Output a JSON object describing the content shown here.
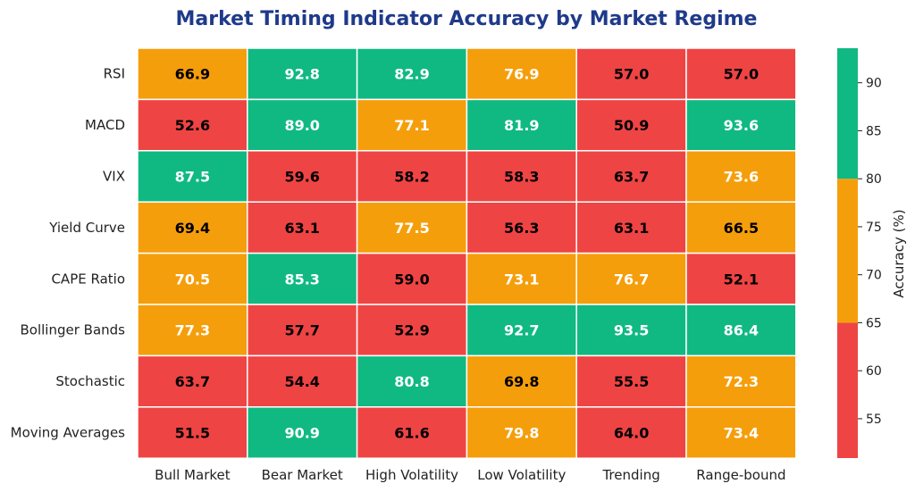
{
  "chart_data": {
    "type": "heatmap",
    "title": "Market Timing Indicator Accuracy by Market Regime",
    "rows": [
      "RSI",
      "MACD",
      "VIX",
      "Yield Curve",
      "CAPE Ratio",
      "Bollinger Bands",
      "Stochastic",
      "Moving Averages"
    ],
    "columns": [
      "Bull Market",
      "Bear Market",
      "High Volatility",
      "Low Volatility",
      "Trending",
      "Range-bound"
    ],
    "values": [
      [
        66.9,
        92.8,
        82.9,
        76.9,
        57.0,
        57.0
      ],
      [
        52.6,
        89.0,
        77.1,
        81.9,
        50.9,
        93.6
      ],
      [
        87.5,
        59.6,
        58.2,
        58.3,
        63.7,
        73.6
      ],
      [
        69.4,
        63.1,
        77.5,
        56.3,
        63.1,
        66.5
      ],
      [
        70.5,
        85.3,
        59.0,
        73.1,
        76.7,
        52.1
      ],
      [
        77.3,
        57.7,
        52.9,
        92.7,
        93.5,
        86.4
      ],
      [
        63.7,
        54.4,
        80.8,
        69.8,
        55.5,
        72.3
      ],
      [
        51.5,
        90.9,
        61.6,
        79.8,
        64.0,
        73.4
      ]
    ],
    "colorbar": {
      "label": "Accuracy (%)",
      "range": [
        50.9,
        93.6
      ],
      "ticks": [
        55,
        60,
        65,
        70,
        75,
        80,
        85,
        90
      ],
      "bands": [
        {
          "from": 50.9,
          "to": 65,
          "color": "#ef4444"
        },
        {
          "from": 65,
          "to": 80,
          "color": "#f59e0b"
        },
        {
          "from": 80,
          "to": 93.6,
          "color": "#10b981"
        }
      ]
    },
    "text_colors": {
      "dark": "#000000",
      "light": "#ffffff"
    }
  }
}
